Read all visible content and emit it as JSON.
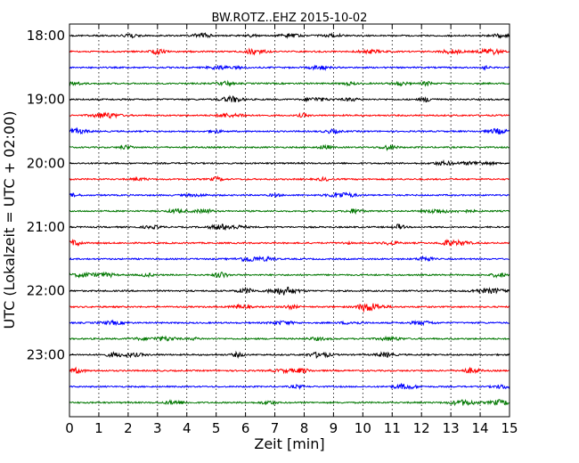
{
  "chart_data": {
    "type": "line",
    "title": "BW.ROTZ..EHZ 2015-10-02",
    "xlabel": "Zeit  [min]",
    "ylabel": "UTC (Lokalzeit = UTC + 02:00)",
    "xlim": [
      0,
      15
    ],
    "x_ticks": [
      0,
      1,
      2,
      3,
      4,
      5,
      6,
      7,
      8,
      9,
      10,
      11,
      12,
      13,
      14,
      15
    ],
    "x_tick_labels": [
      "0",
      "1",
      "2",
      "3",
      "4",
      "5",
      "6",
      "7",
      "8",
      "9",
      "10",
      "11",
      "12",
      "13",
      "14",
      "15"
    ],
    "grid": "vertical dotted lines at each minute",
    "y_tick_labels": [
      "18:00",
      "19:00",
      "20:00",
      "21:00",
      "22:00",
      "23:00"
    ],
    "trace_colors": [
      "#000000",
      "#ff0000",
      "#0000ff",
      "#007700"
    ],
    "series": [
      {
        "name": "18:00",
        "color": "#000000"
      },
      {
        "name": "18:15",
        "color": "#ff0000"
      },
      {
        "name": "18:30",
        "color": "#0000ff"
      },
      {
        "name": "18:45",
        "color": "#007700"
      },
      {
        "name": "19:00",
        "color": "#000000"
      },
      {
        "name": "19:15",
        "color": "#ff0000"
      },
      {
        "name": "19:30",
        "color": "#0000ff"
      },
      {
        "name": "19:45",
        "color": "#007700"
      },
      {
        "name": "20:00",
        "color": "#000000"
      },
      {
        "name": "20:15",
        "color": "#ff0000"
      },
      {
        "name": "20:30",
        "color": "#0000ff"
      },
      {
        "name": "20:45",
        "color": "#007700"
      },
      {
        "name": "21:00",
        "color": "#000000"
      },
      {
        "name": "21:15",
        "color": "#ff0000"
      },
      {
        "name": "21:30",
        "color": "#0000ff"
      },
      {
        "name": "21:45",
        "color": "#007700"
      },
      {
        "name": "22:00",
        "color": "#000000"
      },
      {
        "name": "22:15",
        "color": "#ff0000"
      },
      {
        "name": "22:30",
        "color": "#0000ff"
      },
      {
        "name": "22:45",
        "color": "#007700"
      },
      {
        "name": "23:00",
        "color": "#000000"
      },
      {
        "name": "23:15",
        "color": "#ff0000"
      },
      {
        "name": "23:30",
        "color": "#0000ff"
      },
      {
        "name": "23:45",
        "color": "#007700"
      }
    ]
  }
}
